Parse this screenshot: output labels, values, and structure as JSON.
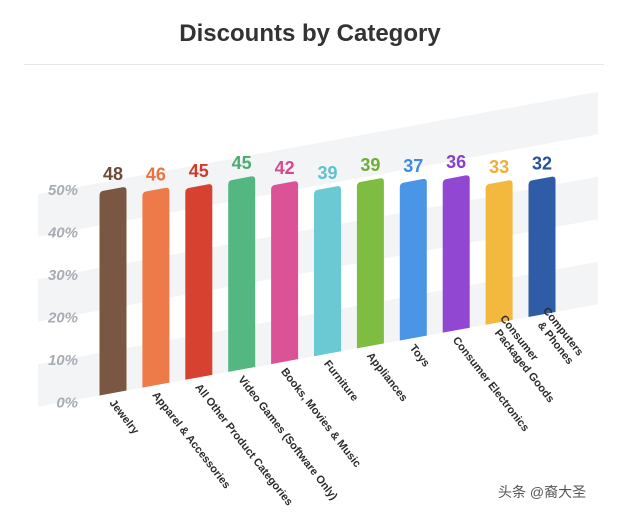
{
  "chart_data": {
    "type": "bar",
    "title": "Discounts by Category",
    "categories": [
      "Jewelry",
      "Apparel & Accessories",
      "All Other Product Categories",
      "Video Games (Software Only)",
      "Books, Movies & Music",
      "Furniture",
      "Appliances",
      "Toys",
      "Consumer Electronics",
      "Consumer Packaged Goods",
      "Computers & Phones"
    ],
    "values": [
      48,
      46,
      45,
      45,
      42,
      39,
      39,
      37,
      36,
      33,
      32
    ],
    "colors": [
      "#7a5743",
      "#ee7a4a",
      "#d7412f",
      "#54b781",
      "#dc5296",
      "#6ac9d3",
      "#7fbc42",
      "#4b95e7",
      "#9247d3",
      "#f3b93f",
      "#2f5ca6"
    ],
    "label_colors": [
      "#6b4a37",
      "#e8733f",
      "#cf3c2b",
      "#4aaa72",
      "#d24b8f",
      "#60c2cd",
      "#6fae35",
      "#3f8be0",
      "#8a3fcc",
      "#efb02f",
      "#2a5299"
    ],
    "ylim": [
      0,
      50
    ],
    "yticks": [
      "0%",
      "10%",
      "20%",
      "30%",
      "40%",
      "50%"
    ],
    "xlabel": "",
    "ylabel": "",
    "grid": true,
    "legend": "none"
  },
  "watermark": "头条 @裔大圣"
}
